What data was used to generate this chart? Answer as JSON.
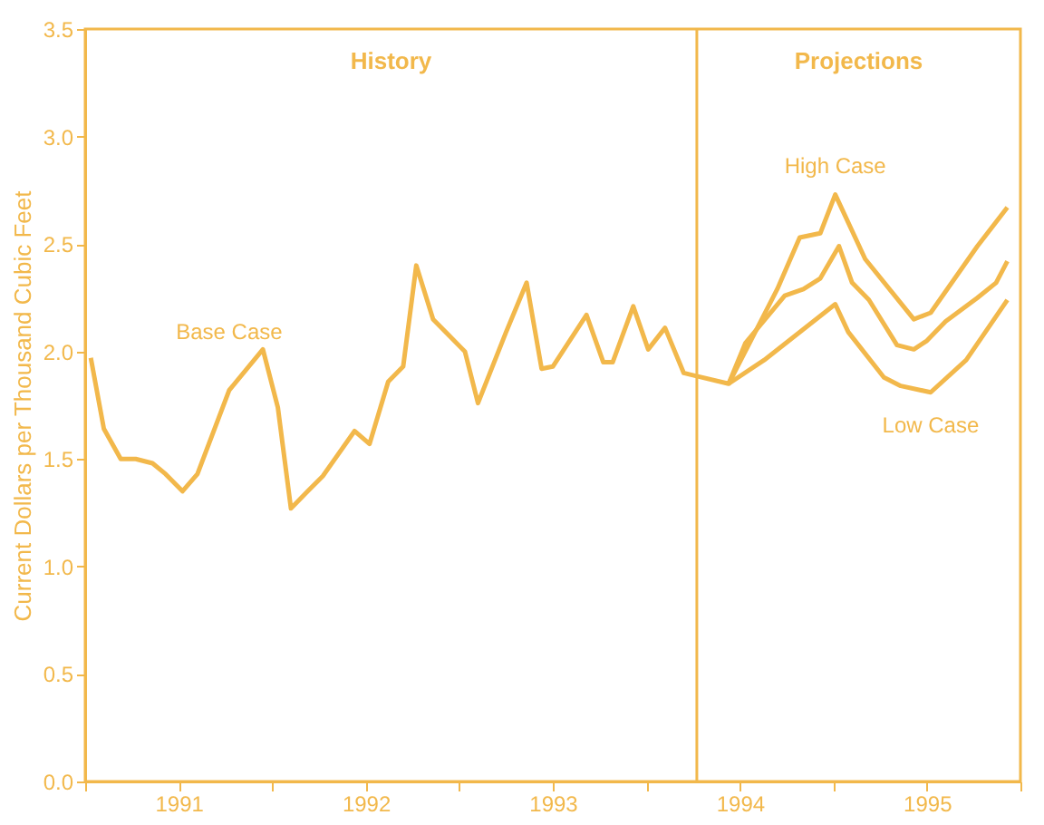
{
  "chart_data": {
    "type": "line",
    "ylabel": "Current Dollars per Thousand Cubic Feet",
    "x": [
      1991.03,
      1991.1,
      1991.19,
      1991.27,
      1991.36,
      1991.43,
      1991.52,
      1991.6,
      1991.77,
      1991.95,
      1992.03,
      1992.1,
      1992.19,
      1992.27,
      1992.44,
      1992.52,
      1992.62,
      1992.7,
      1992.77,
      1992.86,
      1992.95,
      1993.03,
      1993.1,
      1993.25,
      1993.36,
      1993.44,
      1993.5,
      1993.68,
      1993.77,
      1993.82,
      1993.93,
      1994.01,
      1994.1,
      1994.2,
      1994.44,
      1994.53,
      1994.74,
      1994.84,
      1994.93,
      1995.03,
      1995.1,
      1995.19,
      1995.34,
      1995.43,
      1995.5,
      1995.6,
      1995.77,
      1995.87,
      1995.93
    ],
    "series": [
      {
        "name": "Base Case",
        "color": "#f2b84b",
        "values": [
          1.97,
          1.64,
          1.5,
          1.5,
          1.48,
          1.43,
          1.35,
          1.43,
          1.82,
          2.01,
          1.74,
          1.27,
          1.35,
          1.42,
          1.63,
          1.57,
          1.86,
          1.93,
          2.4,
          2.15,
          2.07,
          2.0,
          1.76,
          2.09,
          2.32,
          1.92,
          1.93,
          2.17,
          1.95,
          1.95,
          2.21,
          2.01,
          2.11,
          1.9,
          1.85,
          2.04,
          2.26,
          2.29,
          2.34,
          2.49,
          2.32,
          2.24,
          2.03,
          2.01,
          2.05,
          2.14,
          2.25,
          2.32,
          2.42
        ]
      },
      {
        "name": "Low Case",
        "color": "#f2b84b",
        "x": [
          1994.44,
          1994.63,
          1995.01,
          1995.08,
          1995.27,
          1995.36,
          1995.52,
          1995.71,
          1995.93
        ],
        "values": [
          1.85,
          1.96,
          2.22,
          2.09,
          1.88,
          1.84,
          1.81,
          1.96,
          2.24
        ]
      },
      {
        "name": "High Case",
        "color": "#f2b84b",
        "x": [
          1994.44,
          1994.7,
          1994.82,
          1994.93,
          1995.01,
          1995.17,
          1995.43,
          1995.52,
          1995.77,
          1995.93
        ],
        "values": [
          1.85,
          2.29,
          2.53,
          2.55,
          2.73,
          2.43,
          2.15,
          2.18,
          2.49,
          2.67
        ]
      }
    ],
    "xlim": [
      1991,
      1996
    ],
    "xticks": [
      {
        "value": 1991,
        "label": null
      },
      {
        "value": 1991.5,
        "label": "1991"
      },
      {
        "value": 1992,
        "label": null
      },
      {
        "value": 1992.5,
        "label": "1992"
      },
      {
        "value": 1993,
        "label": null
      },
      {
        "value": 1993.5,
        "label": "1993"
      },
      {
        "value": 1994,
        "label": null
      },
      {
        "value": 1994.5,
        "label": "1994"
      },
      {
        "value": 1995,
        "label": null
      },
      {
        "value": 1995.5,
        "label": "1995"
      },
      {
        "value": 1996,
        "label": null
      }
    ],
    "ylim": [
      0,
      3.5
    ],
    "yticks": [
      {
        "value": 0,
        "label": "0.0"
      },
      {
        "value": 0.5,
        "label": "0.5"
      },
      {
        "value": 1,
        "label": "1.0"
      },
      {
        "value": 1.5,
        "label": "1.5"
      },
      {
        "value": 2,
        "label": "2.0"
      },
      {
        "value": 2.5,
        "label": "2.5"
      },
      {
        "value": 3,
        "label": "3.0"
      },
      {
        "value": 3.5,
        "label": "3.5"
      }
    ],
    "ref_lines": [
      {
        "axis": "x",
        "value": 1994.27,
        "color": "#f2b84b"
      }
    ],
    "annotations": [
      "History",
      "Projections"
    ],
    "grid": false,
    "legend": false,
    "marker": "none",
    "line_style": "solid"
  }
}
